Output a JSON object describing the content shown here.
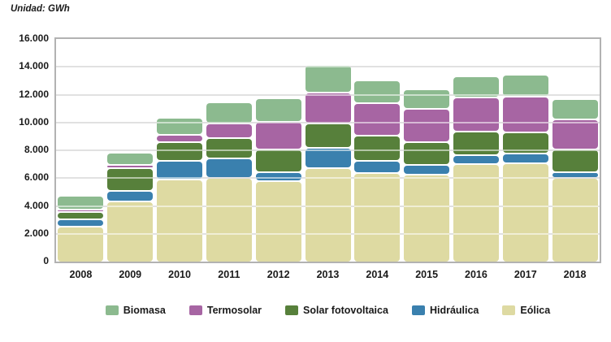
{
  "title": "Unidad: GWh",
  "chart_data": {
    "type": "bar",
    "stacked": true,
    "unit": "GWh",
    "title": "Unidad: GWh",
    "xlabel": "",
    "ylabel": "GWh",
    "ylim": [
      0,
      16000
    ],
    "ytick_step": 2000,
    "ytick_labels_top_to_bottom": [
      "16.000",
      "14.000",
      "12.000",
      "10.000",
      "8.000",
      "6.000",
      "4.000",
      "2.000",
      "0"
    ],
    "grid": "horizontal",
    "legend_position": "bottom",
    "categories": [
      "2008",
      "2009",
      "2010",
      "2011",
      "2012",
      "2013",
      "2014",
      "2015",
      "2016",
      "2017",
      "2018"
    ],
    "series": [
      {
        "name": "Eólica",
        "color": "#DEDAA2",
        "values": [
          2550,
          4400,
          5950,
          6100,
          5850,
          6800,
          6450,
          6300,
          7050,
          7100,
          6100
        ]
      },
      {
        "name": "Hidráulica",
        "color": "#3A80AE",
        "values": [
          550,
          750,
          1350,
          1400,
          650,
          1450,
          850,
          700,
          650,
          750,
          400
        ]
      },
      {
        "name": "Solar fotovoltaica",
        "color": "#57803B",
        "values": [
          500,
          1650,
          1350,
          1450,
          1600,
          1750,
          1800,
          1650,
          1700,
          1500,
          1600
        ]
      },
      {
        "name": "Termosolar",
        "color": "#A765A3",
        "values": [
          200,
          200,
          500,
          1050,
          2000,
          2200,
          2350,
          2400,
          2450,
          2550,
          2200
        ]
      },
      {
        "name": "Biomasa",
        "color": "#8CBA8F",
        "values": [
          1000,
          900,
          1250,
          1500,
          1700,
          2000,
          1650,
          1400,
          1550,
          1600,
          1450
        ]
      }
    ],
    "totals": [
      4800,
      7900,
      10400,
      11500,
      11800,
      14200,
      13100,
      12450,
      13400,
      13500,
      11750
    ],
    "legend_order": [
      "Biomasa",
      "Termosolar",
      "Solar fotovoltaica",
      "Hidráulica",
      "Eólica"
    ]
  },
  "colors": {
    "grid": "#bcbcbc",
    "plot_border": "#b2b2b2",
    "text": "#1a1a1a",
    "background": "#ffffff"
  }
}
